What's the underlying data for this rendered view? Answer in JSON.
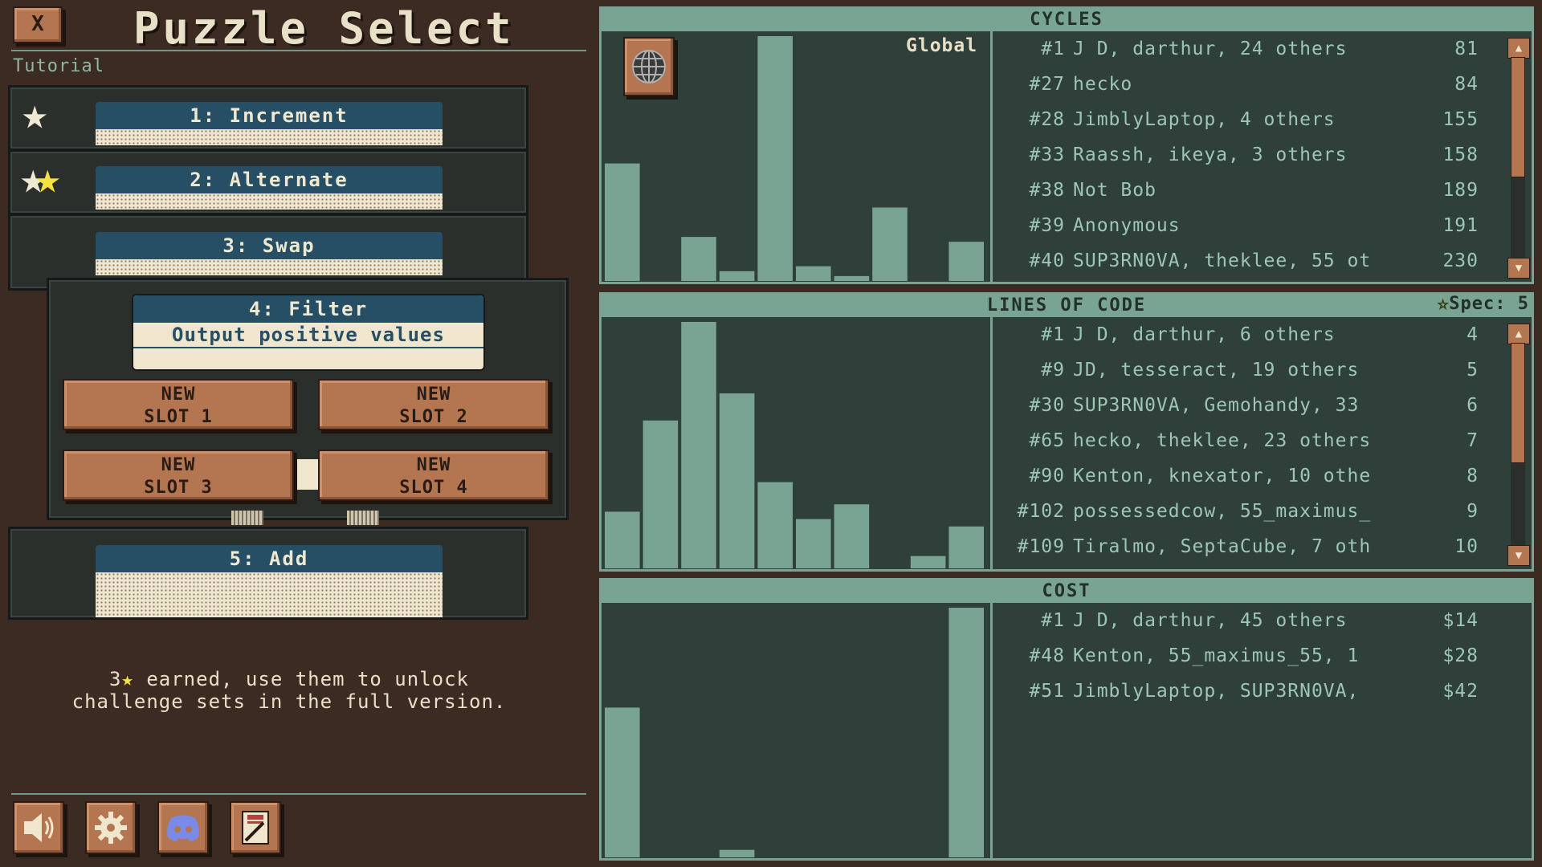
{
  "header": {
    "close_label": "X",
    "title": "Puzzle Select",
    "section": "Tutorial"
  },
  "puzzles": [
    {
      "label": "1: Increment",
      "stars": 1
    },
    {
      "label": "2: Alternate",
      "stars": 2
    },
    {
      "label": "3: Swap",
      "stars": 0
    },
    {
      "label": "4: Filter",
      "description": "Output positive values",
      "stars": 0,
      "expanded": true
    },
    {
      "label": "5: Add",
      "stars": 0
    }
  ],
  "slots": [
    {
      "line1": "NEW",
      "line2": "SLOT 1"
    },
    {
      "line1": "NEW",
      "line2": "SLOT 2"
    },
    {
      "line1": "NEW",
      "line2": "SLOT 3"
    },
    {
      "line1": "NEW",
      "line2": "SLOT 4"
    }
  ],
  "info": {
    "line1_count": "3",
    "line1_rest": " earned, use them to unlock",
    "line2": "challenge sets in the full version."
  },
  "toolbar": {
    "buttons": [
      "sound-icon",
      "gear-icon",
      "discord-icon",
      "manual-icon"
    ]
  },
  "leaderboards": {
    "global_label": "Global",
    "cycles": {
      "title": "CYCLES",
      "rows": [
        {
          "rank": "#1",
          "names": "J D, darthur, 24 others",
          "score": "81"
        },
        {
          "rank": "#27",
          "names": "hecko",
          "score": "84"
        },
        {
          "rank": "#28",
          "names": "JimblyLaptop, 4 others",
          "score": "155"
        },
        {
          "rank": "#33",
          "names": "Raassh, ikeya, 3 others",
          "score": "158"
        },
        {
          "rank": "#38",
          "names": "Not Bob",
          "score": "189"
        },
        {
          "rank": "#39",
          "names": "Anonymous",
          "score": "191"
        },
        {
          "rank": "#40",
          "names": "SUP3RN0VA, theklee, 55 ot",
          "score": "230"
        }
      ],
      "histogram": [
        0.48,
        0,
        0.18,
        0.04,
        1.0,
        0.06,
        0.02,
        0.3,
        0,
        0.16
      ],
      "scroll_fraction": 0.0
    },
    "lines": {
      "title": "LINES OF CODE",
      "spec_label": "Spec: 5",
      "rows": [
        {
          "rank": "#1",
          "names": "J D, darthur, 6 others",
          "score": "4"
        },
        {
          "rank": "#9",
          "names": "JD, tesseract, 19 others",
          "score": "5"
        },
        {
          "rank": "#30",
          "names": "SUP3RN0VA, Gemohandy, 33",
          "score": "6"
        },
        {
          "rank": "#65",
          "names": "hecko, theklee, 23 others",
          "score": "7"
        },
        {
          "rank": "#90",
          "names": "Kenton, knexator, 10 othe",
          "score": "8"
        },
        {
          "rank": "#102",
          "names": "possessedcow, 55_maximus_",
          "score": "9"
        },
        {
          "rank": "#109",
          "names": "Tiralmo, SeptaCube, 7 oth",
          "score": "10"
        }
      ],
      "histogram": [
        0.23,
        0.6,
        1.0,
        0.71,
        0.35,
        0.2,
        0.26,
        0,
        0.05,
        0.17
      ],
      "scroll_fraction": 0.0
    },
    "cost": {
      "title": "COST",
      "rows": [
        {
          "rank": "#1",
          "names": "J D, darthur, 45 others",
          "score": "$14"
        },
        {
          "rank": "#48",
          "names": "Kenton, 55_maximus_55, 1",
          "score": "$28"
        },
        {
          "rank": "#51",
          "names": "JimblyLaptop, SUP3RN0VA,",
          "score": "$42"
        }
      ],
      "histogram": [
        0.6,
        0,
        0,
        0.03,
        0,
        0,
        0,
        0,
        0,
        1.0
      ]
    }
  },
  "colors": {
    "panel_bg": "#2f3f39",
    "bar": "#79a393",
    "accent": "#b47650",
    "banner": "#264f66",
    "star": "#f4e242"
  }
}
